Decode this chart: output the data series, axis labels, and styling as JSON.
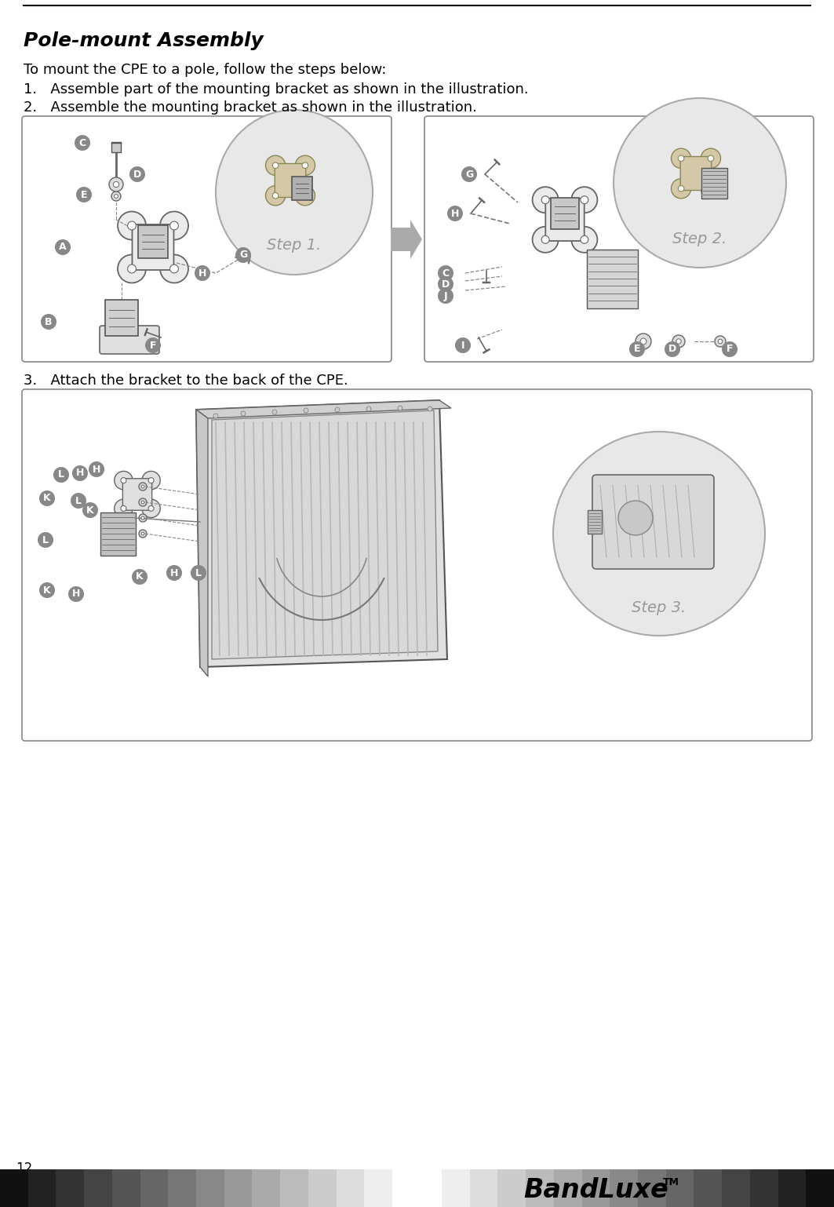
{
  "page_number": "12",
  "title": "Pole-mount Assembly",
  "intro_text": "To mount the CPE to a pole, follow the steps below:",
  "step1_text": "Assemble part of the mounting bracket as shown in the illustration.",
  "step2_text": "Assemble the mounting bracket as shown in the illustration.",
  "step3_text": "Attach the bracket to the back of the CPE.",
  "bg_color": "#ffffff",
  "box_border_color": "#888888",
  "box_fill_color": "#ffffff",
  "circle_fill_color": "#e8e8e8",
  "circle_border_color": "#aaaaaa",
  "step_text_color": "#999999",
  "label_circle_color": "#888888",
  "arrow_fill_color": "#aaaaaa",
  "bracket_line_color": "#555555",
  "bracket_fill_color": "#cccccc",
  "title_fontsize": 18,
  "body_fontsize": 13,
  "step_num_fontsize": 13,
  "label_fontsize": 9,
  "step_label_fontsize": 14,
  "footer_colors": [
    "#111111",
    "#222222",
    "#333333",
    "#444444",
    "#555555",
    "#666666",
    "#777777",
    "#888888",
    "#999999",
    "#aaaaaa",
    "#bbbbbb",
    "#cccccc",
    "#dddddd",
    "#eeeeee"
  ],
  "fig_width": 10.63,
  "fig_height": 15.38
}
